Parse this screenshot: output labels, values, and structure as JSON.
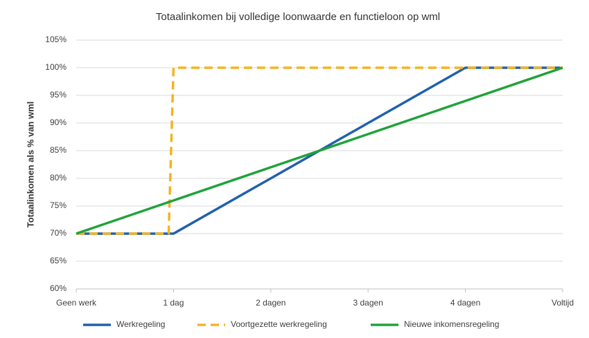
{
  "chart_data": {
    "type": "line",
    "title": "Totaalinkomen bij volledige loonwaarde en functieloon op wml",
    "y_label": "Totaalinkomen als % van wml",
    "xlim": [
      0,
      5
    ],
    "xticks": [
      {
        "value": 0,
        "label": "Geen werk"
      },
      {
        "value": 1,
        "label": "1 dag"
      },
      {
        "value": 2,
        "label": "2 dagen"
      },
      {
        "value": 3,
        "label": "3 dagen"
      },
      {
        "value": 4,
        "label": "4 dagen"
      },
      {
        "value": 5,
        "label": "Voltijd"
      }
    ],
    "ylim": [
      60,
      105
    ],
    "yticks": [
      {
        "value": 60,
        "label": "60%"
      },
      {
        "value": 65,
        "label": "65%"
      },
      {
        "value": 70,
        "label": "70%"
      },
      {
        "value": 75,
        "label": "75%"
      },
      {
        "value": 80,
        "label": "80%"
      },
      {
        "value": 85,
        "label": "85%"
      },
      {
        "value": 90,
        "label": "90%"
      },
      {
        "value": 95,
        "label": "95%"
      },
      {
        "value": 100,
        "label": "100%"
      },
      {
        "value": 105,
        "label": "105%"
      }
    ],
    "grid": true,
    "legend": "bottom",
    "series": [
      {
        "name": "Werkregeling",
        "color": "#2160ad",
        "dashed": false,
        "x": [
          0,
          1,
          2,
          3,
          4,
          5
        ],
        "values": [
          70,
          70,
          80,
          90,
          100,
          100
        ]
      },
      {
        "name": "Voortgezette werkregeling",
        "color": "#f5b320",
        "dashed": true,
        "x": [
          0,
          0.95,
          1,
          5
        ],
        "values": [
          70,
          70,
          100,
          100
        ]
      },
      {
        "name": "Nieuwe inkomensregeling",
        "color": "#1fa23a",
        "dashed": false,
        "x": [
          0,
          1,
          2,
          3,
          4,
          5
        ],
        "values": [
          70,
          76,
          82,
          88,
          94,
          100
        ]
      }
    ]
  }
}
